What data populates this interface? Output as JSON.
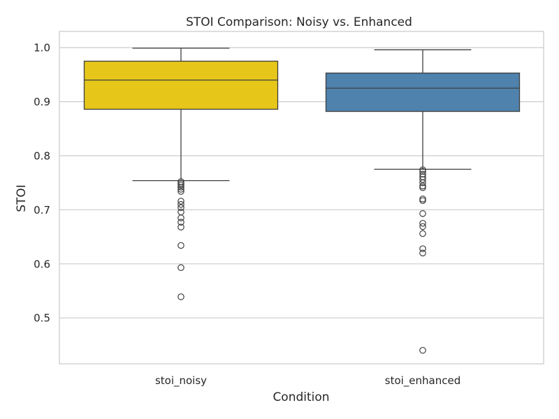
{
  "chart_data": {
    "type": "box",
    "title": "STOI Comparison: Noisy vs. Enhanced",
    "xlabel": "Condition",
    "ylabel": "STOI",
    "ylim": [
      0.415,
      1.03
    ],
    "yticks": [
      0.5,
      0.6,
      0.7,
      0.8,
      0.9,
      1.0
    ],
    "ytick_labels": [
      "0.5",
      "0.6",
      "0.7",
      "0.8",
      "0.9",
      "1.0"
    ],
    "grid": true,
    "categories": [
      "stoi_noisy",
      "stoi_enhanced"
    ],
    "boxes": [
      {
        "name": "stoi_noisy",
        "color": "#e6c619",
        "whisker_low": 0.754,
        "q1": 0.886,
        "median": 0.94,
        "q3": 0.975,
        "whisker_high": 0.999,
        "outliers": [
          0.752,
          0.749,
          0.746,
          0.742,
          0.738,
          0.734,
          0.716,
          0.71,
          0.704,
          0.696,
          0.685,
          0.677,
          0.668,
          0.634,
          0.593,
          0.539
        ]
      },
      {
        "name": "stoi_enhanced",
        "color": "#4f82ad",
        "whisker_low": 0.775,
        "q1": 0.882,
        "median": 0.925,
        "q3": 0.953,
        "whisker_high": 0.996,
        "outliers": [
          0.774,
          0.771,
          0.766,
          0.761,
          0.756,
          0.75,
          0.744,
          0.741,
          0.72,
          0.717,
          0.693,
          0.675,
          0.669,
          0.656,
          0.628,
          0.62,
          0.44
        ]
      }
    ]
  },
  "colors": {
    "box_edge": "#3f3f3f",
    "grid": "#cccccc",
    "frame": "#cccccc",
    "text": "#262626"
  }
}
